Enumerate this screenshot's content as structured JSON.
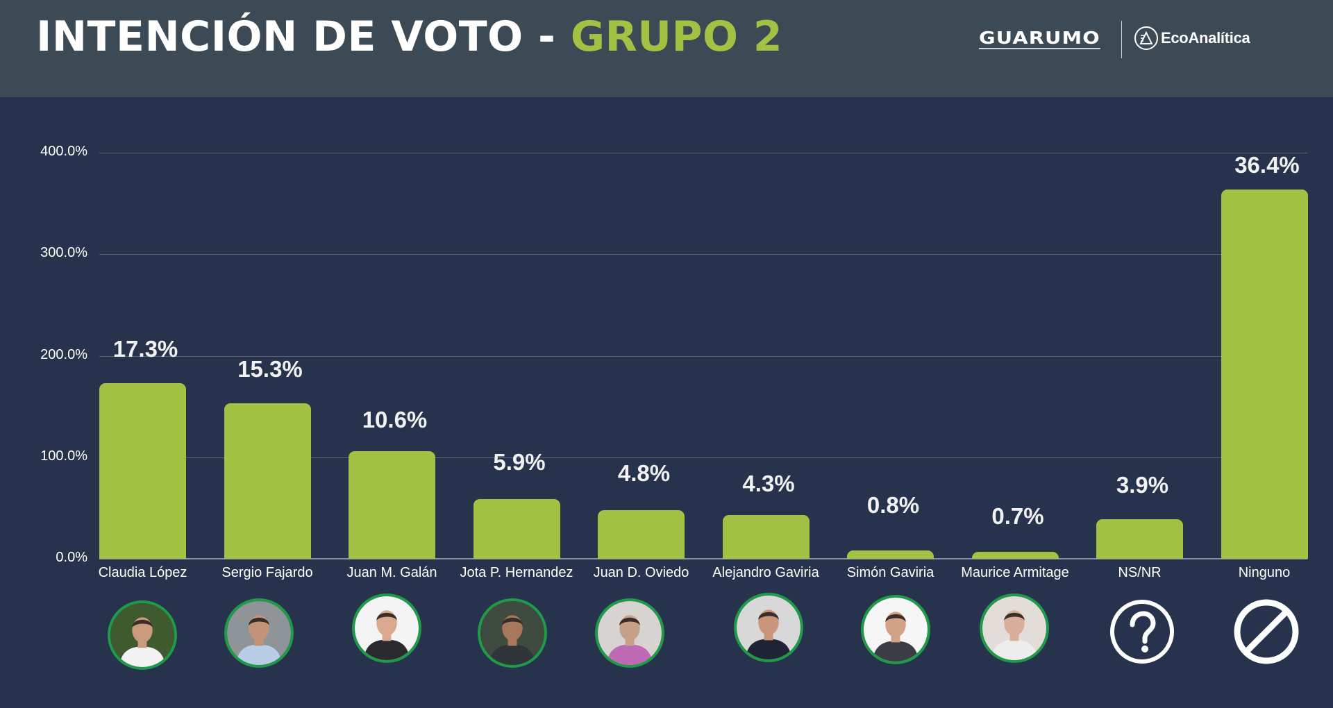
{
  "header": {
    "title_main": "INTENCIÓN DE VOTO - ",
    "title_accent": "GRUPO 2",
    "logo_left": "GUARUMO",
    "logo_right": "EcoAnalítica"
  },
  "colors": {
    "header_bg": "#3C4A55",
    "body_bg": "#27334D",
    "bar": "#A3C243",
    "accent_text": "#A3C243",
    "avatar_border": "#1E9A48",
    "gridline": "#59627A"
  },
  "chart_data": {
    "type": "bar",
    "title": "INTENCIÓN DE VOTO - GRUPO 2",
    "xlabel": "",
    "ylabel": "",
    "ylim": [
      0,
      400
    ],
    "y_ticks": [
      "0.0%",
      "100.0%",
      "200.0%",
      "300.0%",
      "400.0%"
    ],
    "grid": true,
    "legend": "none",
    "note": "Bars are drawn on a 0–400% axis at 10× the labeled value; the data labels show the actual percentages.",
    "categories": [
      "Claudia López",
      "Sergio Fajardo",
      "Juan M. Galán",
      "Jota P. Hernandez",
      "Juan D. Oviedo",
      "Alejandro Gaviria",
      "Simón Gaviria",
      "Maurice Armitage",
      "NS/NR",
      "Ninguno"
    ],
    "values": [
      17.3,
      15.3,
      10.6,
      5.9,
      4.8,
      4.3,
      0.8,
      0.7,
      3.9,
      36.4
    ],
    "value_labels": [
      "17.3%",
      "15.3%",
      "10.6%",
      "5.9%",
      "4.8%",
      "4.3%",
      "0.8%",
      "0.7%",
      "3.9%",
      "36.4%"
    ],
    "plotted_axis_values": [
      173,
      153,
      106,
      59,
      48,
      43,
      8,
      7,
      39,
      364
    ]
  },
  "bars": [
    {
      "name": "Claudia López",
      "label": "17.3%",
      "icon": "photo-avatar",
      "skin": "#C99A7C",
      "bg": "#3E5A2E",
      "shirt": "#F3F3F3"
    },
    {
      "name": "Sergio Fajardo",
      "label": "15.3%",
      "icon": "photo-avatar",
      "skin": "#C29377",
      "bg": "#8E9498",
      "shirt": "#B9CEE6"
    },
    {
      "name": "Juan M. Galán",
      "label": "10.6%",
      "icon": "photo-avatar",
      "skin": "#D9A98F",
      "bg": "#F4F4F4",
      "shirt": "#2A2A2E"
    },
    {
      "name": "Jota P. Hernandez",
      "label": "5.9%",
      "icon": "photo-avatar",
      "skin": "#A8785C",
      "bg": "#3F4A40",
      "shirt": "#30353A"
    },
    {
      "name": "Juan D. Oviedo",
      "label": "4.8%",
      "icon": "photo-avatar",
      "skin": "#C8A087",
      "bg": "#D6D3D0",
      "shirt": "#C06AB6"
    },
    {
      "name": "Alejandro Gaviria",
      "label": "4.3%",
      "icon": "photo-avatar",
      "skin": "#C9967C",
      "bg": "#D8D8D8",
      "shirt": "#1E2433"
    },
    {
      "name": "Simón Gaviria",
      "label": "0.8%",
      "icon": "photo-avatar",
      "skin": "#D2A286",
      "bg": "#F6F6F6",
      "shirt": "#3A3D44"
    },
    {
      "name": "Maurice Armitage",
      "label": "0.7%",
      "icon": "photo-avatar",
      "skin": "#D9AE9A",
      "bg": "#E2DDD8",
      "shirt": "#EDEDED"
    },
    {
      "name": "NS/NR",
      "label": "3.9%",
      "icon": "question-circle-icon"
    },
    {
      "name": "Ninguno",
      "label": "36.4%",
      "icon": "prohibited-icon"
    }
  ]
}
